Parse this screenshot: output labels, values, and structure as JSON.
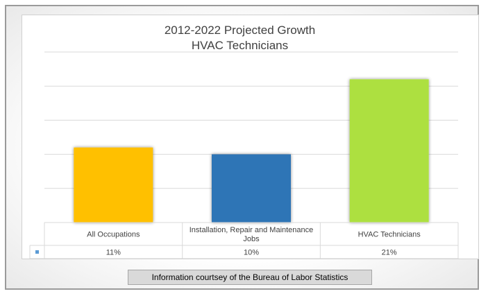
{
  "chart_data": {
    "type": "bar",
    "title": "2012-2022 Projected Growth",
    "subtitle": "HVAC Technicians",
    "categories": [
      "All Occupations",
      "Installation, Repair and Maintenance Jobs",
      "HVAC Technicians"
    ],
    "category_lines": [
      [
        "All Occupations"
      ],
      [
        "Installation, Repair and Maintenance",
        "Jobs"
      ],
      [
        "HVAC Technicians"
      ]
    ],
    "values": [
      11,
      10,
      21
    ],
    "data_labels": [
      "11%",
      "10%",
      "21%"
    ],
    "colors": [
      "#FFC000",
      "#2E75B6",
      "#ADE041"
    ],
    "ylim": [
      0,
      25
    ],
    "gridlines": true,
    "legend": "data-table"
  },
  "footer": {
    "text": "Information courtsey of the Bureau of Labor Statistics"
  }
}
